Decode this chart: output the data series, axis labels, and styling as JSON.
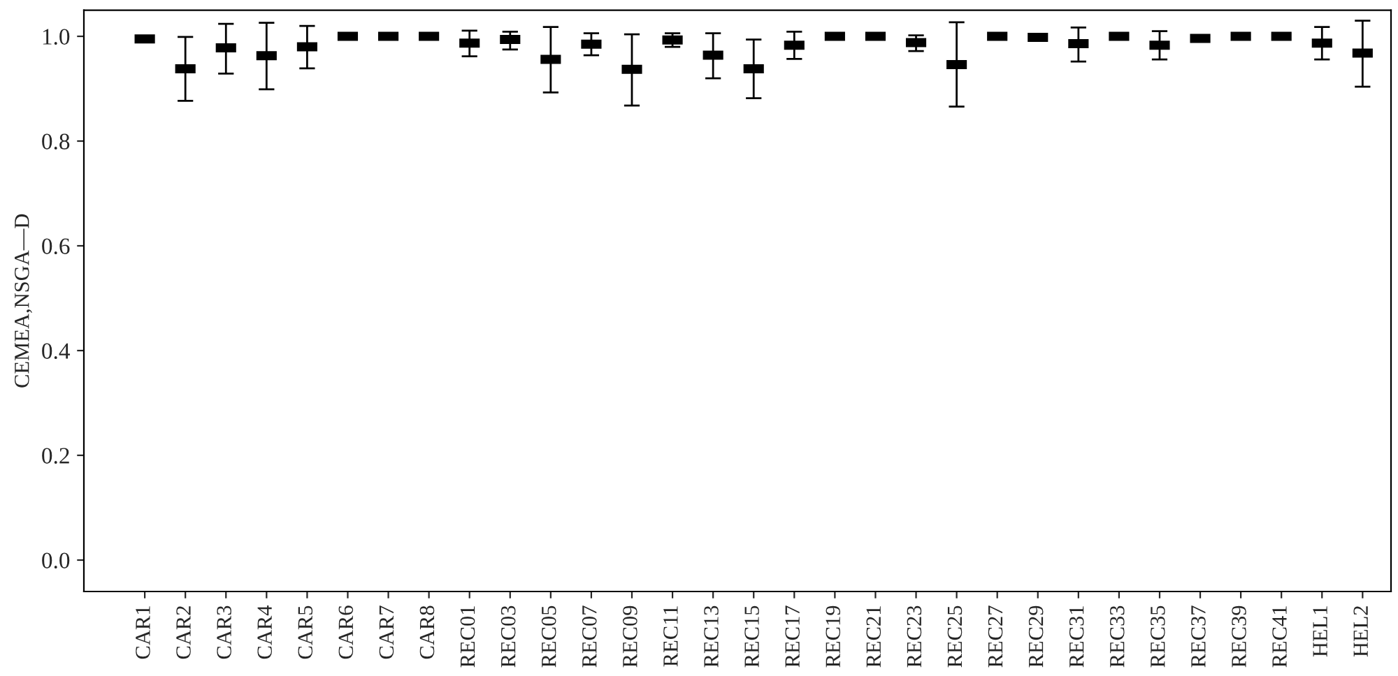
{
  "chart_data": {
    "type": "scatter",
    "ylabel": "CEMEA,NSGA—D",
    "categories": [
      "CAR1",
      "CAR2",
      "CAR3",
      "CAR4",
      "CAR5",
      "CAR6",
      "CAR7",
      "CAR8",
      "REC01",
      "REC03",
      "REC05",
      "REC07",
      "REC09",
      "REC11",
      "REC13",
      "REC15",
      "REC17",
      "REC19",
      "REC21",
      "REC23",
      "REC25",
      "REC27",
      "REC29",
      "REC31",
      "REC33",
      "REC35",
      "REC37",
      "REC39",
      "REC41",
      "HEL1",
      "HEL2"
    ],
    "values": [
      0.995,
      0.938,
      0.978,
      0.963,
      0.98,
      1.0,
      1.0,
      1.0,
      0.987,
      0.994,
      0.956,
      0.985,
      0.937,
      0.993,
      0.964,
      0.938,
      0.983,
      1.0,
      1.0,
      0.988,
      0.946,
      1.0,
      0.998,
      0.986,
      1.0,
      0.983,
      0.996,
      1.0,
      1.0,
      0.987,
      0.968
    ],
    "errors": [
      null,
      [
        0.877,
        0.999
      ],
      [
        0.929,
        1.024
      ],
      [
        0.899,
        1.026
      ],
      [
        0.939,
        1.02
      ],
      null,
      null,
      null,
      [
        0.962,
        1.011
      ],
      [
        0.975,
        1.009
      ],
      [
        0.893,
        1.018
      ],
      [
        0.964,
        1.006
      ],
      [
        0.868,
        1.004
      ],
      [
        0.98,
        1.006
      ],
      [
        0.92,
        1.006
      ],
      [
        0.882,
        0.994
      ],
      [
        0.957,
        1.009
      ],
      null,
      null,
      [
        0.972,
        1.002
      ],
      [
        0.866,
        1.027
      ],
      null,
      null,
      [
        0.952,
        1.017
      ],
      null,
      [
        0.956,
        1.01
      ],
      [
        0.99,
        1.002
      ],
      null,
      null,
      [
        0.956,
        1.018
      ],
      [
        0.904,
        1.03
      ]
    ],
    "color": "#000000",
    "marker": "square",
    "ylim": [
      -0.06,
      1.05
    ],
    "yticks": [
      {
        "value": 0,
        "label": "0.0"
      },
      0.2,
      0.4,
      0.6,
      0.8,
      {
        "value": 1,
        "label": "1.0"
      }
    ],
    "grid": false
  }
}
